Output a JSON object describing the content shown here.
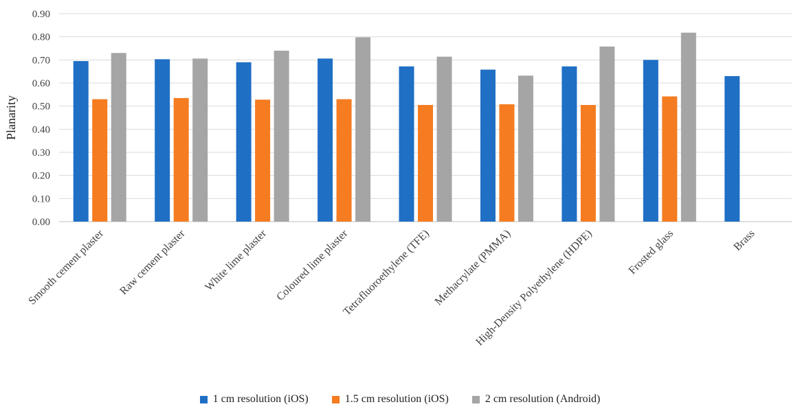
{
  "chart_data": {
    "type": "bar",
    "title": "",
    "xlabel": "",
    "ylabel": "Planarity",
    "ylim": [
      0,
      0.9
    ],
    "yticks": [
      "0.00",
      "0.10",
      "0.20",
      "0.30",
      "0.40",
      "0.50",
      "0.60",
      "0.70",
      "0.80",
      "0.90"
    ],
    "grid": true,
    "legend_position": "bottom",
    "categories": [
      "Smooth cement plaster",
      "Raw cement plaster",
      "White lime plaster",
      "Coloured lime plaster",
      "Tetrafluoroethylene (TFE)",
      "Methacrylate (PMMA)",
      "High-Density Polyethylene (HDPE)",
      "Frosted glass",
      "Brass"
    ],
    "series": [
      {
        "name": "1 cm resolution (iOS)",
        "color": "#1f6fc5",
        "values": [
          0.695,
          0.703,
          0.69,
          0.706,
          0.672,
          0.658,
          0.672,
          0.7,
          0.63
        ]
      },
      {
        "name": "1.5 cm resolution (iOS)",
        "color": "#f57c20",
        "values": [
          0.53,
          0.535,
          0.528,
          0.53,
          0.505,
          0.508,
          0.505,
          0.542,
          null
        ]
      },
      {
        "name": "2 cm resolution (Android)",
        "color": "#a5a5a5",
        "values": [
          0.73,
          0.706,
          0.74,
          0.798,
          0.714,
          0.632,
          0.758,
          0.818,
          null
        ]
      }
    ]
  }
}
